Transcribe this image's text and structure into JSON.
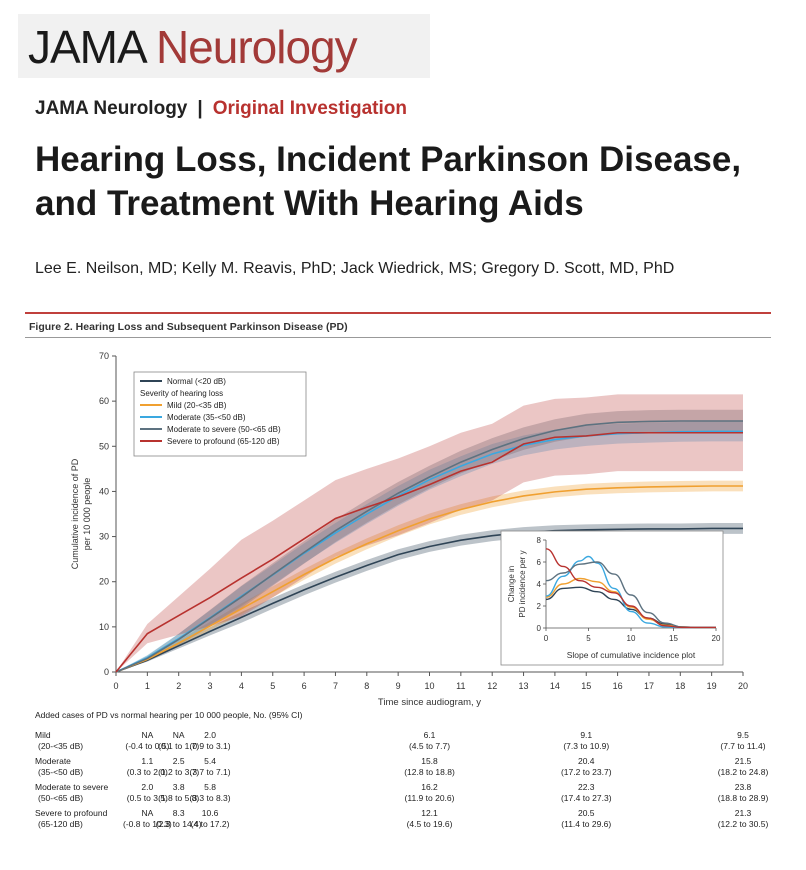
{
  "journal": {
    "name_part1": "JAMA",
    "name_part2": "Neurology"
  },
  "kicker": {
    "journal": "JAMA Neurology",
    "sep": "|",
    "section": "Original Investigation"
  },
  "article": {
    "title": "Hearing Loss, Incident Parkinson Disease, and Treatment With Hearing Aids",
    "authors": "Lee E. Neilson, MD; Kelly M. Reavis, PhD; Jack Wiedrick, MS; Gregory D. Scott, MD, PhD"
  },
  "figure": {
    "caption": "Figure 2. Hearing Loss and Subsequent Parkinson Disease (PD)"
  },
  "colors": {
    "normal": "#2f4456",
    "mild": "#f0a030",
    "moderate": "#3aa8e0",
    "moderate_severe": "#5d7280",
    "severe": "#b8322f",
    "accent": "#c0403c"
  },
  "chart_data": [
    {
      "type": "line",
      "xlabel": "Time since audiogram, y",
      "ylabel": [
        "Cumulative incidence of PD",
        "per 10 000 people"
      ],
      "xlim": [
        0,
        20
      ],
      "ylim": [
        0,
        70
      ],
      "xticks": [
        "0",
        "1",
        "2",
        "3",
        "4",
        "5",
        "6",
        "7",
        "8",
        "9",
        "10",
        "11",
        "12",
        "13",
        "14",
        "15",
        "16",
        "17",
        "18",
        "19",
        "20"
      ],
      "yticks": [
        "0",
        "10",
        "20",
        "30",
        "40",
        "50",
        "60",
        "70"
      ],
      "legend": {
        "placement": "top-left",
        "group_label": "Severity of hearing loss"
      },
      "series": [
        {
          "name": "Normal (<20 dB)",
          "color": "#2f4456",
          "x": [
            0,
            1,
            2,
            3,
            4,
            5,
            6,
            7,
            8,
            9,
            10,
            11,
            12,
            13,
            14,
            15,
            16,
            17,
            18,
            19,
            20
          ],
          "y": [
            0,
            2.6,
            5.8,
            9.0,
            12.1,
            15.2,
            18.2,
            21.0,
            23.6,
            26.0,
            27.8,
            29.2,
            30.2,
            30.9,
            31.3,
            31.5,
            31.6,
            31.7,
            31.7,
            31.8,
            31.8
          ],
          "band": 1.2
        },
        {
          "name": "Mild (20-<35 dB)",
          "color": "#f0a030",
          "x": [
            0,
            1,
            2,
            3,
            4,
            5,
            6,
            7,
            8,
            9,
            10,
            11,
            12,
            13,
            14,
            15,
            16,
            17,
            18,
            19,
            20
          ],
          "y": [
            0,
            2.8,
            6.4,
            10.2,
            14.0,
            17.8,
            21.6,
            25.2,
            28.4,
            31.3,
            33.9,
            36.0,
            37.7,
            39.0,
            39.9,
            40.5,
            40.8,
            41.0,
            41.1,
            41.2,
            41.2
          ],
          "band": 1.2
        },
        {
          "name": "Moderate (35-<50 dB)",
          "color": "#3aa8e0",
          "x": [
            0,
            1,
            2,
            3,
            4,
            5,
            6,
            7,
            8,
            9,
            10,
            11,
            12,
            13,
            14,
            15,
            16,
            17,
            18,
            19,
            20
          ],
          "y": [
            0,
            3.2,
            7.4,
            12.0,
            16.8,
            21.5,
            26.3,
            30.8,
            35.0,
            39.0,
            42.6,
            45.6,
            48.3,
            50.2,
            51.5,
            52.3,
            52.8,
            53.0,
            53.2,
            53.3,
            53.3
          ],
          "band": 2.2
        },
        {
          "name": "Moderate to severe (50-<65 dB)",
          "color": "#5d7280",
          "x": [
            0,
            1,
            2,
            3,
            4,
            5,
            6,
            7,
            8,
            9,
            10,
            11,
            12,
            13,
            14,
            15,
            16,
            17,
            18,
            19,
            20
          ],
          "y": [
            0,
            3.0,
            7.2,
            11.9,
            16.6,
            21.6,
            26.5,
            31.3,
            35.6,
            39.6,
            43.2,
            46.5,
            49.3,
            51.7,
            53.5,
            54.7,
            55.3,
            55.5,
            55.6,
            55.6,
            55.6
          ],
          "band": 2.5
        },
        {
          "name": "Severe to profound (65-120 dB)",
          "color": "#b8322f",
          "x": [
            0,
            1,
            2,
            3,
            4,
            5,
            6,
            7,
            8,
            9,
            10,
            11,
            12,
            13,
            14,
            15,
            16,
            17,
            18,
            19,
            20
          ],
          "y": [
            0,
            8.5,
            12.5,
            16.5,
            20.8,
            25.0,
            29.5,
            34.0,
            36.5,
            38.8,
            41.5,
            44.5,
            46.5,
            50.5,
            52.0,
            52.3,
            53.0,
            53.0,
            53.0,
            53.0,
            53.0
          ],
          "band": 8.5
        }
      ]
    },
    {
      "type": "line",
      "role": "inset",
      "xlabel": "Slope of cumulative incidence plot",
      "ylabel": [
        "Change in",
        "PD incidence per y"
      ],
      "xlim": [
        0,
        20
      ],
      "ylim": [
        0,
        8
      ],
      "xticks": [
        "0",
        "5",
        "10",
        "15",
        "20"
      ],
      "yticks": [
        "0",
        "2",
        "4",
        "6",
        "8"
      ],
      "series": [
        {
          "color": "#2f4456",
          "x": [
            0,
            2,
            4,
            6,
            8,
            10,
            12,
            14,
            16,
            18,
            20
          ],
          "y": [
            2.6,
            3.6,
            3.7,
            3.3,
            2.6,
            1.7,
            0.9,
            0.35,
            0.1,
            0.05,
            0.05
          ]
        },
        {
          "color": "#f0a030",
          "x": [
            0,
            2,
            4,
            6,
            8,
            10,
            12,
            14,
            16,
            18,
            20
          ],
          "y": [
            2.8,
            4.0,
            4.5,
            4.2,
            3.3,
            1.9,
            0.8,
            0.25,
            0.1,
            0.05,
            0.05
          ]
        },
        {
          "color": "#3aa8e0",
          "x": [
            0,
            2,
            4,
            5,
            6,
            8,
            10,
            12,
            14,
            16,
            18,
            20
          ],
          "y": [
            2.9,
            4.7,
            6.1,
            6.5,
            5.9,
            3.6,
            1.5,
            0.45,
            0.1,
            0.05,
            0.05,
            0.05
          ]
        },
        {
          "color": "#5d7280",
          "x": [
            0,
            2,
            4,
            6,
            8,
            10,
            12,
            14,
            16,
            18,
            20
          ],
          "y": [
            4.3,
            5.0,
            5.8,
            6.0,
            4.9,
            3.0,
            1.4,
            0.45,
            0.1,
            0.05,
            0.05
          ]
        },
        {
          "color": "#b8322f",
          "x": [
            0,
            2,
            4,
            6,
            8,
            10,
            12,
            14,
            16,
            18,
            20
          ],
          "y": [
            7.2,
            5.6,
            4.3,
            3.7,
            3.2,
            2.0,
            0.9,
            0.2,
            0.05,
            0.05,
            0.05
          ]
        }
      ]
    }
  ],
  "table": {
    "header": "Added cases of PD vs normal hearing per 10 000 people, No. (95% CI)",
    "columns_x": [
      1,
      2,
      3,
      10,
      15,
      20
    ],
    "rows": [
      {
        "name": "Mild",
        "sub": "(20-<35 dB)",
        "vals": [
          "NA",
          "NA",
          "2.0",
          "6.1",
          "9.1",
          "9.5"
        ],
        "cis": [
          "(-0.4 to 0.5)",
          "(0.1 to 1.7)",
          "(0.9 to 3.1)",
          "(4.5 to 7.7)",
          "(7.3 to 10.9)",
          "(7.7 to 11.4)"
        ]
      },
      {
        "name": "Moderate",
        "sub": "(35-<50 dB)",
        "vals": [
          "1.1",
          "2.5",
          "5.4",
          "15.8",
          "20.4",
          "21.5"
        ],
        "cis": [
          "(0.3 to 2.0)",
          "(1.2 to 3.7)",
          "(3.7 to 7.1)",
          "(12.8 to 18.8)",
          "(17.2 to 23.7)",
          "(18.2 to 24.8)"
        ]
      },
      {
        "name": "Moderate to severe",
        "sub": "(50-<65 dB)",
        "vals": [
          "2.0",
          "3.8",
          "5.8",
          "16.2",
          "22.3",
          "23.8"
        ],
        "cis": [
          "(0.5 to 3.5)",
          "(1.8 to 5.8)",
          "(3.3 to 8.3)",
          "(11.9 to 20.6)",
          "(17.4 to 27.3)",
          "(18.8 to 28.9)"
        ]
      },
      {
        "name": "Severe to profound",
        "sub": "(65-120 dB)",
        "vals": [
          "NA",
          "8.3",
          "10.6",
          "12.1",
          "20.5",
          "21.3"
        ],
        "cis": [
          "(-0.8 to 10.3)",
          "(2.3 to 14.4)",
          "(4 to 17.2)",
          "(4.5 to 19.6)",
          "(11.4 to 29.6)",
          "(12.2 to 30.5)"
        ]
      }
    ]
  }
}
